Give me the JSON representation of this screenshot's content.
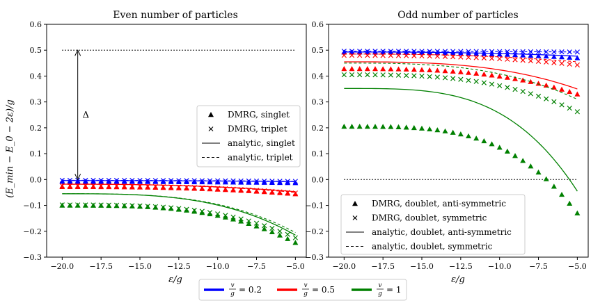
{
  "chart_data": [
    {
      "type": "scatter",
      "title": "Even number of particles",
      "xlabel": "ε/g",
      "ylabel": "(E_min − E_0 − 2ε)/g",
      "xlim": [
        -21,
        -4.3
      ],
      "ylim": [
        -0.3,
        0.6
      ],
      "xticks": [
        -20.0,
        -17.5,
        -15.0,
        -12.5,
        -10.0,
        -7.5,
        -5.0
      ],
      "yticks": [
        -0.3,
        -0.2,
        -0.1,
        0.0,
        0.1,
        0.2,
        0.3,
        0.4,
        0.5,
        0.6
      ],
      "grid": false,
      "hline": {
        "y": 0.5,
        "x_from": -20,
        "x_to": -5,
        "style": "dotted"
      },
      "annotation": {
        "text": "Δ",
        "x": -19,
        "y_from": 0.0,
        "y_to": 0.5,
        "arrow": "double"
      },
      "legend": {
        "position": "center-right",
        "entries": [
          {
            "marker": "triangle",
            "label": "DMRG, singlet"
          },
          {
            "marker": "x",
            "label": "DMRG, triplet"
          },
          {
            "marker": "solid-line",
            "label": "analytic, singlet"
          },
          {
            "marker": "dashed-line",
            "label": "analytic, triplet"
          }
        ]
      },
      "series": [
        {
          "name": "v/g = 0.2",
          "color": "#0000ff",
          "dmrg_singlet": {
            "x_from": -20,
            "x_to": -5,
            "y_from": -0.008,
            "y_to": -0.013,
            "curvature": 2
          },
          "dmrg_triplet": {
            "x_from": -20,
            "x_to": -5,
            "y_from": -0.003,
            "y_to": -0.007,
            "curvature": 2
          },
          "analytic_singlet": {
            "x_from": -20,
            "x_to": -5,
            "y_from": -0.004,
            "y_to": -0.008,
            "curvature": 2
          },
          "analytic_triplet": {
            "x_from": -20,
            "x_to": -5,
            "y_from": -0.003,
            "y_to": -0.007,
            "curvature": 2
          }
        },
        {
          "name": "v/g = 0.5",
          "color": "#ff0000",
          "dmrg_singlet": {
            "x_from": -20,
            "x_to": -5,
            "y_from": -0.028,
            "y_to": -0.056,
            "curvature": 2.5
          },
          "dmrg_triplet": {
            "x_from": -20,
            "x_to": -5,
            "y_from": -0.024,
            "y_to": -0.052,
            "curvature": 2.5
          },
          "analytic_singlet": {
            "x_from": -20,
            "x_to": -5,
            "y_from": -0.018,
            "y_to": -0.047,
            "curvature": 2.5
          },
          "analytic_triplet": {
            "x_from": -20,
            "x_to": -5,
            "y_from": -0.018,
            "y_to": -0.05,
            "curvature": 2.5
          }
        },
        {
          "name": "v/g = 1",
          "color": "#008000",
          "dmrg_singlet": {
            "x_from": -20,
            "x_to": -5,
            "y_from": -0.1,
            "y_to": -0.244,
            "curvature": 3.2
          },
          "dmrg_triplet": {
            "x_from": -20,
            "x_to": -5,
            "y_from": -0.098,
            "y_to": -0.225,
            "curvature": 3.2
          },
          "analytic_singlet": {
            "x_from": -20,
            "x_to": -5,
            "y_from": -0.055,
            "y_to": -0.215,
            "curvature": 3.2
          },
          "analytic_triplet": {
            "x_from": -20,
            "x_to": -5,
            "y_from": -0.055,
            "y_to": -0.205,
            "curvature": 3.2
          }
        }
      ]
    },
    {
      "type": "scatter",
      "title": "Odd number of particles",
      "xlabel": "ε/g",
      "ylabel": "",
      "xlim": [
        -21,
        -4.3
      ],
      "ylim": [
        -0.3,
        0.6
      ],
      "xticks": [
        -20.0,
        -17.5,
        -15.0,
        -12.5,
        -10.0,
        -7.5,
        -5.0
      ],
      "yticks": [
        -0.3,
        -0.2,
        -0.1,
        0.0,
        0.1,
        0.2,
        0.3,
        0.4,
        0.5,
        0.6
      ],
      "grid": false,
      "hline": {
        "y": 0.0,
        "x_from": -20,
        "x_to": -5,
        "style": "dotted"
      },
      "legend": {
        "position": "lower-left",
        "entries": [
          {
            "marker": "triangle",
            "label": "DMRG, doublet, anti-symmetric"
          },
          {
            "marker": "x",
            "label": "DMRG, doublet, symmetric"
          },
          {
            "marker": "solid-line",
            "label": "analytic, doublet, anti-symmetric"
          },
          {
            "marker": "dashed-line",
            "label": "analytic, doublet, symmetric"
          }
        ]
      },
      "series": [
        {
          "name": "v/g = 0.2",
          "color": "#0000ff",
          "dmrg_antisym": {
            "x_from": -20,
            "x_to": -5,
            "y_from": 0.492,
            "y_to": 0.47,
            "curvature": 2.5
          },
          "dmrg_sym": {
            "x_from": -20,
            "x_to": -5,
            "y_from": 0.496,
            "y_to": 0.493,
            "curvature": 2
          },
          "analytic_antisym": {
            "x_from": -20,
            "x_to": -5,
            "y_from": 0.493,
            "y_to": 0.477,
            "curvature": 2.5
          },
          "analytic_sym": {
            "x_from": -20,
            "x_to": -5,
            "y_from": 0.496,
            "y_to": 0.493,
            "curvature": 2
          }
        },
        {
          "name": "v/g = 0.5",
          "color": "#ff0000",
          "dmrg_antisym": {
            "x_from": -20,
            "x_to": -5,
            "y_from": 0.428,
            "y_to": 0.33,
            "curvature": 3
          },
          "dmrg_sym": {
            "x_from": -20,
            "x_to": -5,
            "y_from": 0.48,
            "y_to": 0.443,
            "curvature": 2.5
          },
          "analytic_antisym": {
            "x_from": -20,
            "x_to": -5,
            "y_from": 0.455,
            "y_to": 0.35,
            "curvature": 3
          },
          "analytic_sym": {
            "x_from": -20,
            "x_to": -5,
            "y_from": 0.485,
            "y_to": 0.455,
            "curvature": 2.5
          }
        },
        {
          "name": "v/g = 1",
          "color": "#008000",
          "dmrg_antisym": {
            "x_from": -20,
            "x_to": -5,
            "y_from": 0.205,
            "y_to": -0.13,
            "curvature": 3.5
          },
          "dmrg_sym": {
            "x_from": -20,
            "x_to": -5,
            "y_from": 0.405,
            "y_to": 0.262,
            "curvature": 3
          },
          "analytic_antisym": {
            "x_from": -20,
            "x_to": -5,
            "y_from": 0.352,
            "y_to": -0.045,
            "curvature": 3.5
          },
          "analytic_sym": {
            "x_from": -20,
            "x_to": -5,
            "y_from": 0.45,
            "y_to": 0.31,
            "curvature": 3
          }
        }
      ]
    }
  ],
  "color_legend": [
    {
      "label": "v/g = 0.2",
      "frac_num": "v",
      "frac_den": "g",
      "value": "= 0.2",
      "color": "#0000ff"
    },
    {
      "label": "v/g = 0.5",
      "frac_num": "v",
      "frac_den": "g",
      "value": "= 0.5",
      "color": "#ff0000"
    },
    {
      "label": "v/g = 1",
      "frac_num": "v",
      "frac_den": "g",
      "value": "= 1",
      "color": "#008000"
    }
  ]
}
